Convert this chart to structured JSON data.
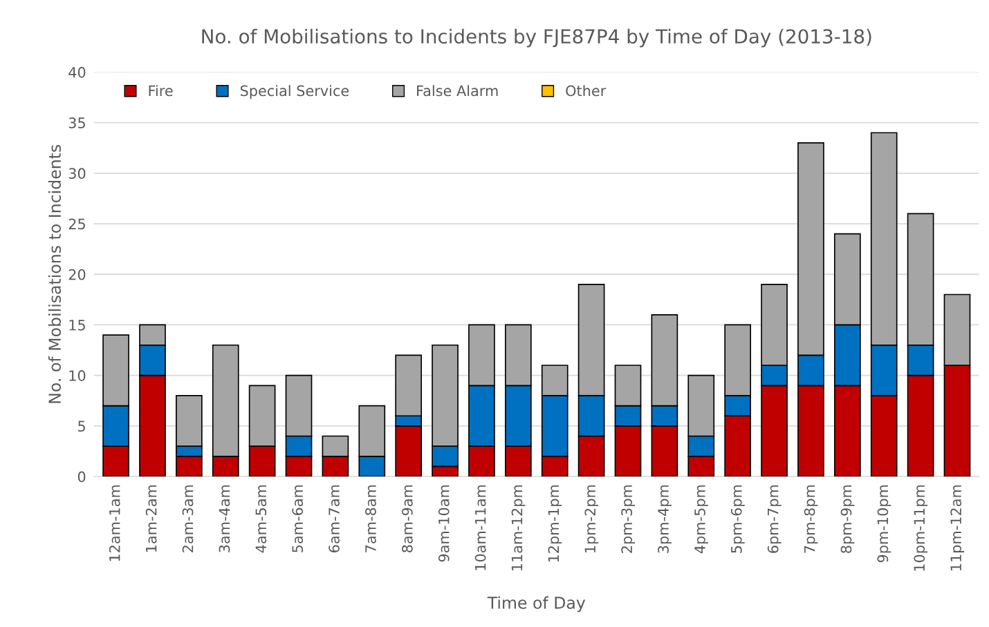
{
  "chart_data": {
    "type": "bar",
    "title": "No. of Mobilisations to Incidents by FJE87P4 by Time of Day (2013-18)",
    "xlabel": "Time of Day",
    "ylabel": "No. of Mobilisations to Incidents",
    "categories": [
      "12am-1am",
      "1am-2am",
      "2am-3am",
      "3am-4am",
      "4am-5am",
      "5am-6am",
      "6am-7am",
      "7am-8am",
      "8am-9am",
      "9am-10am",
      "10am-11am",
      "11am-12pm",
      "12pm-1pm",
      "1pm-2pm",
      "2pm-3pm",
      "3pm-4pm",
      "4pm-5pm",
      "5pm-6pm",
      "6pm-7pm",
      "7pm-8pm",
      "8pm-9pm",
      "9pm-10pm",
      "10pm-11pm",
      "11pm-12am"
    ],
    "stacked": true,
    "series": [
      {
        "name": "Fire",
        "color": "#c00000",
        "values": [
          3,
          10,
          2,
          2,
          3,
          2,
          2,
          0,
          5,
          1,
          3,
          3,
          2,
          4,
          5,
          5,
          2,
          6,
          9,
          9,
          9,
          8,
          10,
          11
        ]
      },
      {
        "name": "Special Service",
        "color": "#0070c0",
        "values": [
          4,
          3,
          1,
          0,
          0,
          2,
          0,
          2,
          1,
          2,
          6,
          6,
          6,
          4,
          2,
          2,
          2,
          2,
          2,
          3,
          6,
          5,
          3,
          0
        ]
      },
      {
        "name": "False Alarm",
        "color": "#a5a5a5",
        "values": [
          7,
          2,
          5,
          11,
          6,
          6,
          2,
          5,
          6,
          10,
          6,
          6,
          3,
          11,
          4,
          9,
          6,
          7,
          8,
          21,
          9,
          21,
          13,
          7
        ]
      },
      {
        "name": "Other",
        "color": "#ffc000",
        "values": [
          0,
          0,
          0,
          0,
          0,
          0,
          0,
          0,
          0,
          0,
          0,
          0,
          0,
          0,
          0,
          0,
          0,
          0,
          0,
          0,
          0,
          0,
          0,
          0
        ]
      }
    ],
    "ylim": [
      0,
      40
    ],
    "yticks": [
      0,
      5,
      10,
      15,
      20,
      25,
      30,
      35,
      40
    ],
    "grid": "y",
    "legend": "top left"
  }
}
